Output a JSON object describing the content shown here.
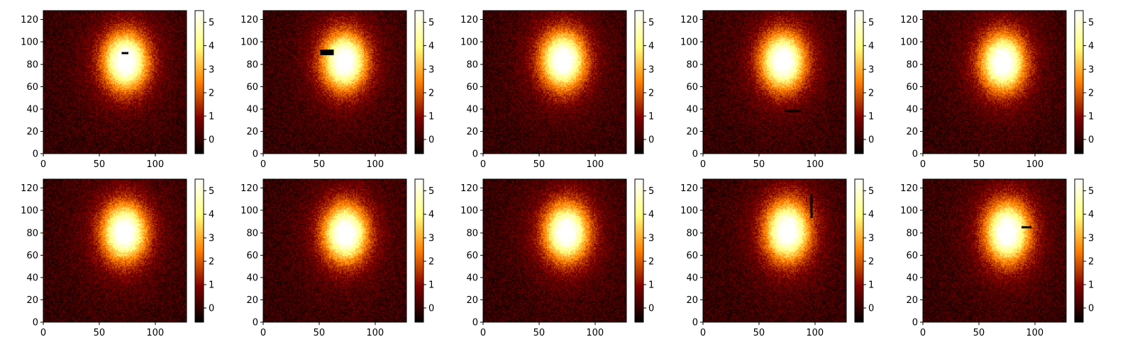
{
  "chart_data": [
    {
      "type": "heatmap",
      "x_ticks": [
        "0",
        "50",
        "100"
      ],
      "y_ticks": [
        "0",
        "20",
        "40",
        "60",
        "80",
        "100",
        "120"
      ],
      "xlim": [
        0,
        128
      ],
      "ylim": [
        0,
        128
      ],
      "colormap": "afmhot",
      "colorbar_range": [
        -0.6,
        5.5
      ],
      "colorbar_ticks": [
        "0",
        "1",
        "2",
        "3",
        "4",
        "5"
      ],
      "blob": {
        "x": 73,
        "y": 82,
        "rx": 17,
        "ry": 22,
        "peak": 5.3
      },
      "masks": [
        {
          "x": 70,
          "y": 89,
          "w": 6,
          "h": 2
        }
      ]
    },
    {
      "type": "heatmap",
      "x_ticks": [
        "0",
        "50",
        "100"
      ],
      "y_ticks": [
        "0",
        "20",
        "40",
        "60",
        "80",
        "100",
        "120"
      ],
      "xlim": [
        0,
        128
      ],
      "ylim": [
        0,
        128
      ],
      "colormap": "afmhot",
      "colorbar_range": [
        -0.6,
        5.5
      ],
      "colorbar_ticks": [
        "0",
        "1",
        "2",
        "3",
        "4",
        "5"
      ],
      "blob": {
        "x": 72,
        "y": 82,
        "rx": 17,
        "ry": 22,
        "peak": 5.3
      },
      "masks": [
        {
          "x": 51,
          "y": 88,
          "w": 12,
          "h": 5
        }
      ]
    },
    {
      "type": "heatmap",
      "x_ticks": [
        "0",
        "50",
        "100"
      ],
      "y_ticks": [
        "0",
        "20",
        "40",
        "60",
        "80",
        "100",
        "120"
      ],
      "xlim": [
        0,
        128
      ],
      "ylim": [
        0,
        128
      ],
      "colormap": "afmhot",
      "colorbar_range": [
        -0.6,
        5.5
      ],
      "colorbar_ticks": [
        "0",
        "1",
        "2",
        "3",
        "4",
        "5"
      ],
      "blob": {
        "x": 71,
        "y": 83,
        "rx": 17,
        "ry": 22,
        "peak": 5.3
      },
      "masks": []
    },
    {
      "type": "heatmap",
      "x_ticks": [
        "0",
        "50",
        "100"
      ],
      "y_ticks": [
        "0",
        "20",
        "40",
        "60",
        "80",
        "100",
        "120"
      ],
      "xlim": [
        0,
        128
      ],
      "ylim": [
        0,
        128
      ],
      "colormap": "afmhot",
      "colorbar_range": [
        -0.6,
        5.5
      ],
      "colorbar_ticks": [
        "0",
        "1",
        "2",
        "3",
        "4",
        "5"
      ],
      "blob": {
        "x": 71,
        "y": 82,
        "rx": 17,
        "ry": 22,
        "peak": 5.3
      },
      "masks": [
        {
          "x": 73,
          "y": 37,
          "w": 14,
          "h": 2
        }
      ]
    },
    {
      "type": "heatmap",
      "x_ticks": [
        "0",
        "50",
        "100"
      ],
      "y_ticks": [
        "0",
        "20",
        "40",
        "60",
        "80",
        "100",
        "120"
      ],
      "xlim": [
        0,
        128
      ],
      "ylim": [
        0,
        128
      ],
      "colormap": "afmhot",
      "colorbar_range": [
        -0.6,
        5.5
      ],
      "colorbar_ticks": [
        "0",
        "1",
        "2",
        "3",
        "4",
        "5"
      ],
      "blob": {
        "x": 71,
        "y": 81,
        "rx": 17,
        "ry": 22,
        "peak": 5.3
      },
      "masks": []
    },
    {
      "type": "heatmap",
      "x_ticks": [
        "0",
        "50",
        "100"
      ],
      "y_ticks": [
        "0",
        "20",
        "40",
        "60",
        "80",
        "100",
        "120"
      ],
      "xlim": [
        0,
        128
      ],
      "ylim": [
        0,
        128
      ],
      "colormap": "afmhot",
      "colorbar_range": [
        -0.6,
        5.5
      ],
      "colorbar_ticks": [
        "0",
        "1",
        "2",
        "3",
        "4",
        "5"
      ],
      "blob": {
        "x": 72,
        "y": 80,
        "rx": 17,
        "ry": 22,
        "peak": 5.3
      },
      "masks": []
    },
    {
      "type": "heatmap",
      "x_ticks": [
        "0",
        "50",
        "100"
      ],
      "y_ticks": [
        "0",
        "20",
        "40",
        "60",
        "80",
        "100",
        "120"
      ],
      "xlim": [
        0,
        128
      ],
      "ylim": [
        0,
        128
      ],
      "colormap": "afmhot",
      "colorbar_range": [
        -0.6,
        5.5
      ],
      "colorbar_ticks": [
        "0",
        "1",
        "2",
        "3",
        "4",
        "5"
      ],
      "blob": {
        "x": 73,
        "y": 79,
        "rx": 17,
        "ry": 22,
        "peak": 5.3
      },
      "masks": []
    },
    {
      "type": "heatmap",
      "x_ticks": [
        "0",
        "50",
        "100"
      ],
      "y_ticks": [
        "0",
        "20",
        "40",
        "60",
        "80",
        "100",
        "120"
      ],
      "xlim": [
        0,
        128
      ],
      "ylim": [
        0,
        128
      ],
      "colormap": "afmhot",
      "colorbar_range": [
        -0.6,
        5.5
      ],
      "colorbar_ticks": [
        "0",
        "1",
        "2",
        "3",
        "4",
        "5"
      ],
      "blob": {
        "x": 74,
        "y": 80,
        "rx": 17,
        "ry": 22,
        "peak": 5.3
      },
      "masks": []
    },
    {
      "type": "heatmap",
      "x_ticks": [
        "0",
        "50",
        "100"
      ],
      "y_ticks": [
        "0",
        "20",
        "40",
        "60",
        "80",
        "100",
        "120"
      ],
      "xlim": [
        0,
        128
      ],
      "ylim": [
        0,
        128
      ],
      "colormap": "afmhot",
      "colorbar_range": [
        -0.6,
        5.5
      ],
      "colorbar_ticks": [
        "0",
        "1",
        "2",
        "3",
        "4",
        "5"
      ],
      "blob": {
        "x": 75,
        "y": 81,
        "rx": 17,
        "ry": 23,
        "peak": 5.3
      },
      "masks": [
        {
          "x": 96,
          "y": 93,
          "w": 2,
          "h": 22
        }
      ]
    },
    {
      "type": "heatmap",
      "x_ticks": [
        "0",
        "50",
        "100"
      ],
      "y_ticks": [
        "0",
        "20",
        "40",
        "60",
        "80",
        "100",
        "120"
      ],
      "xlim": [
        0,
        128
      ],
      "ylim": [
        0,
        128
      ],
      "colormap": "afmhot",
      "colorbar_range": [
        -0.6,
        5.5
      ],
      "colorbar_ticks": [
        "0",
        "1",
        "2",
        "3",
        "4",
        "5"
      ],
      "blob": {
        "x": 75,
        "y": 80,
        "rx": 17,
        "ry": 23,
        "peak": 5.3
      },
      "masks": [
        {
          "x": 88,
          "y": 84,
          "w": 9,
          "h": 2
        }
      ]
    }
  ]
}
